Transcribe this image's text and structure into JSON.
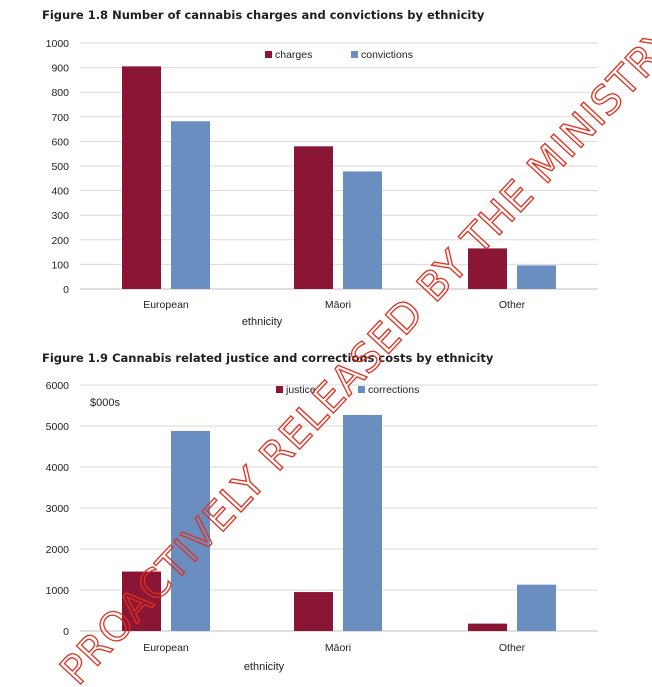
{
  "watermark": "PROACTIVELY RELEASED BY THE MINISTRY OF",
  "chart_data": [
    {
      "type": "bar",
      "title": "Figure 1.8 Number of cannabis charges and convictions by ethnicity",
      "xlabel": "ethnicity",
      "ylabel": "",
      "unit_note": "",
      "categories": [
        "European",
        "Māori",
        "Other"
      ],
      "ylim": [
        0,
        1000
      ],
      "yticks": [
        "0",
        "100",
        "200",
        "300",
        "400",
        "500",
        "600",
        "700",
        "800",
        "900",
        "1000"
      ],
      "grid": true,
      "legend_position": "top-center",
      "series": [
        {
          "name": "charges",
          "color": "#8b1535",
          "values": [
            905,
            580,
            165
          ]
        },
        {
          "name": "convictions",
          "color": "#6a8ebf",
          "values": [
            682,
            478,
            96
          ]
        }
      ]
    },
    {
      "type": "bar",
      "title": "Figure 1.9 Cannabis related justice and corrections costs by ethnicity",
      "xlabel": "ethnicity",
      "ylabel": "",
      "unit_note": "$000s",
      "categories": [
        "European",
        "Māori",
        "Other"
      ],
      "ylim": [
        0,
        6000
      ],
      "yticks": [
        "0",
        "1000",
        "2000",
        "3000",
        "4000",
        "5000",
        "6000"
      ],
      "grid": true,
      "legend_position": "top-center",
      "series": [
        {
          "name": "justice",
          "color": "#8b1535",
          "values": [
            1450,
            950,
            180
          ]
        },
        {
          "name": "corrections",
          "color": "#6a8ebf",
          "values": [
            4880,
            5270,
            1130
          ]
        }
      ]
    }
  ]
}
